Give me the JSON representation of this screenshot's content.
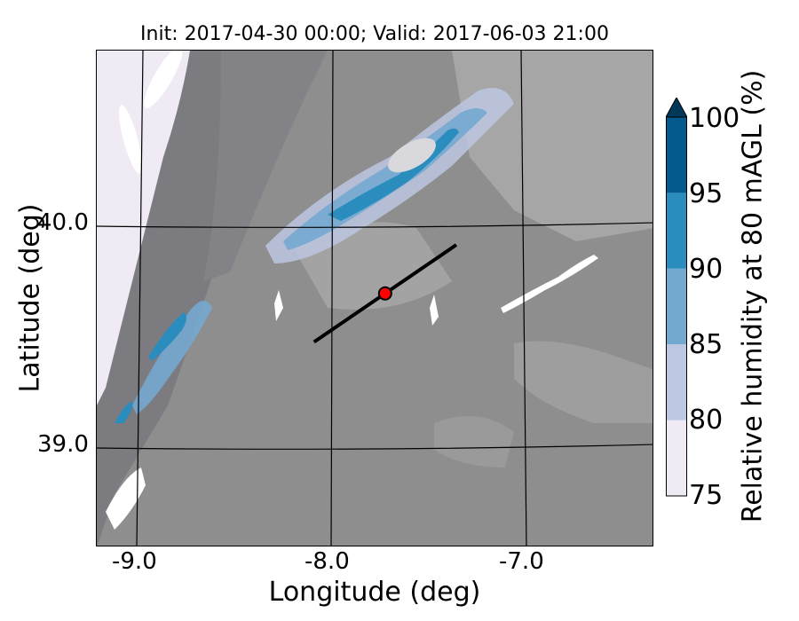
{
  "title": "Init: 2017-04-30 00:00; Valid: 2017-06-03 21:00",
  "map": {
    "x_label": "Longitude (deg)",
    "y_label": "Latitude (deg)",
    "x_ticks": [
      "-9.0",
      "-8.0",
      "-7.0"
    ],
    "y_ticks": [
      "40.0",
      "39.0"
    ],
    "x_range": [
      -9.25,
      -6.35
    ],
    "y_range": [
      38.55,
      40.8
    ],
    "transect": {
      "start": [
        -8.12,
        39.48
      ],
      "end": [
        -7.38,
        39.92
      ]
    },
    "point": {
      "lon": -7.75,
      "lat": 39.7,
      "color": "#ff0000"
    }
  },
  "colorbar": {
    "label": "Relative humidity at 80 mAGL (%)",
    "ticks": [
      "100",
      "95",
      "90",
      "85",
      "80",
      "75"
    ],
    "levels": [
      {
        "from": 75,
        "to": 80,
        "color": "#efeaf4"
      },
      {
        "from": 80,
        "to": 85,
        "color": "#bdc7e2"
      },
      {
        "from": 85,
        "to": 90,
        "color": "#74a9cf"
      },
      {
        "from": 90,
        "to": 95,
        "color": "#2b8cbe"
      },
      {
        "from": 95,
        "to": 100,
        "color": "#045a8d"
      }
    ],
    "extend_color": "#023858"
  }
}
